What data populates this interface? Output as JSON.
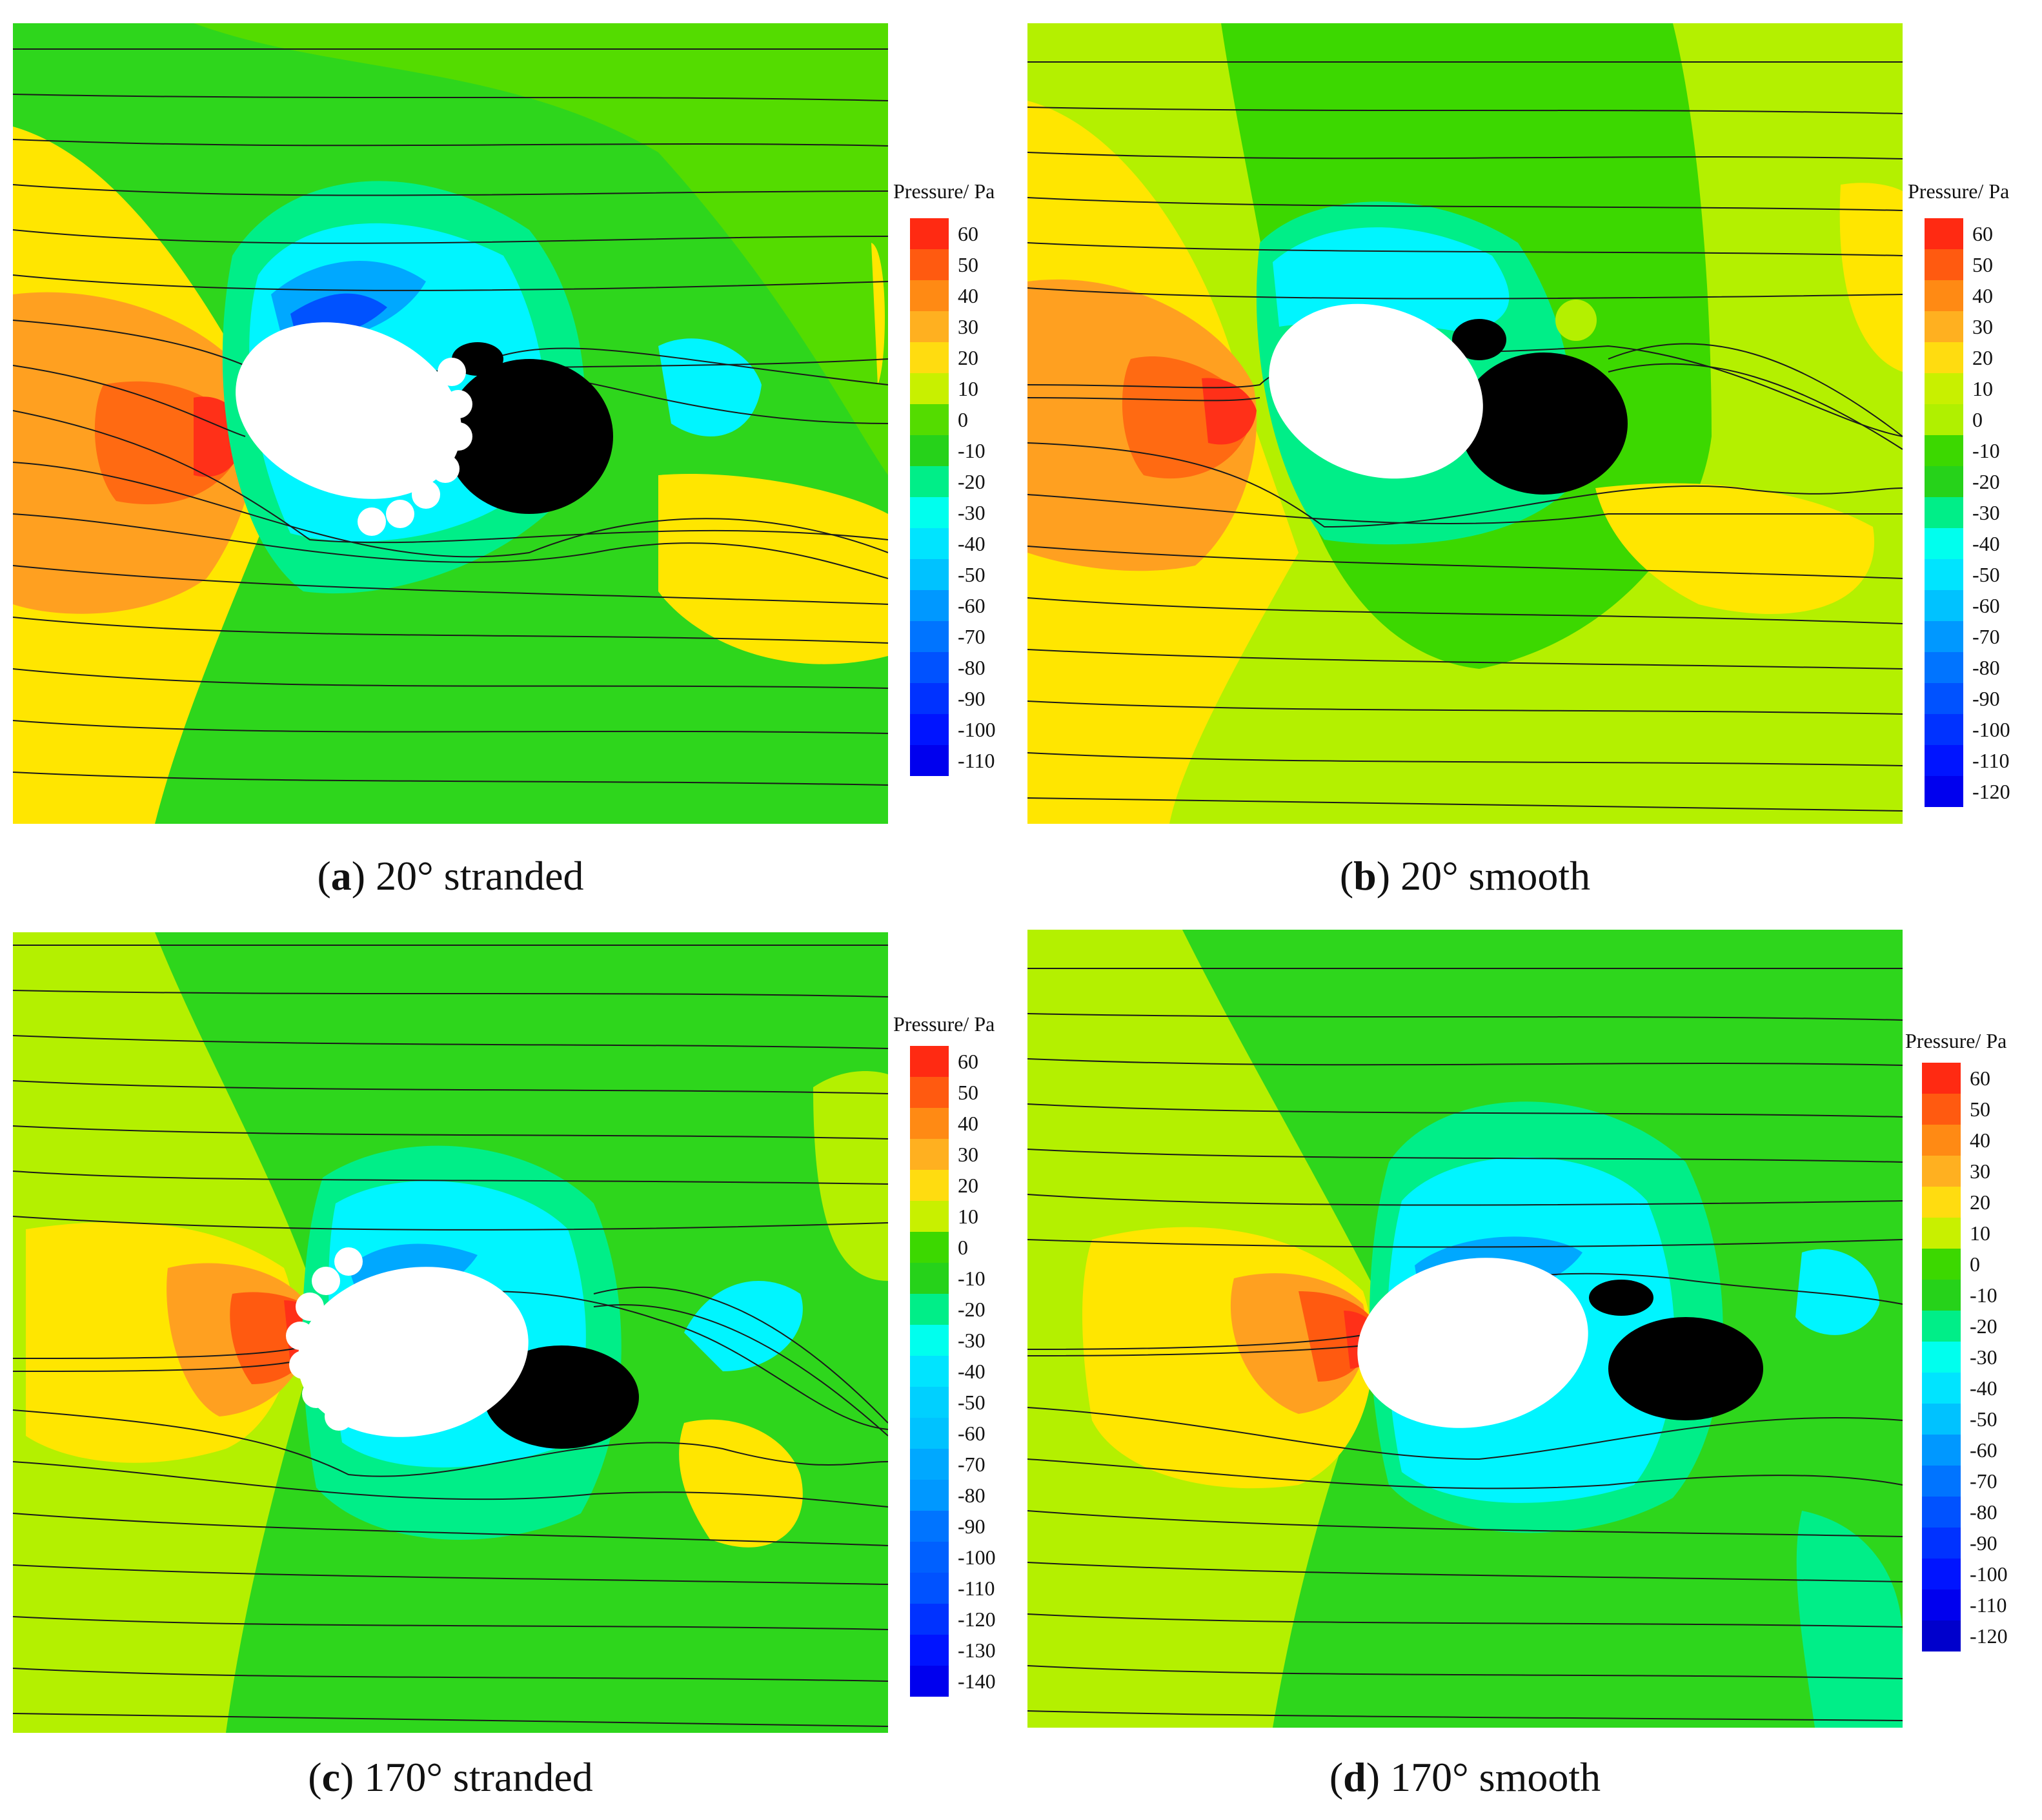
{
  "figure": {
    "panels": [
      {
        "id": "a",
        "letter": "a",
        "caption": "20° stranded",
        "legend_title": "Pressure/ Pa",
        "legend_levels": [
          "60",
          "50",
          "40",
          "30",
          "20",
          "10",
          "0",
          "-10",
          "-20",
          "-30",
          "-40",
          "-50",
          "-60",
          "-70",
          "-80",
          "-90",
          "-100",
          "-110"
        ],
        "legend_colors": [
          "#ff2a12",
          "#ff5a10",
          "#ff8a14",
          "#ffb020",
          "#ffdc10",
          "#c8f000",
          "#54dc00",
          "#26d21a",
          "#00ee88",
          "#00ffee",
          "#00e4ff",
          "#00c2ff",
          "#0098ff",
          "#0074ff",
          "#0052ff",
          "#0032ff",
          "#0014ff",
          "#0000ee"
        ],
        "cylinder": "stranded",
        "cylinder_tilt_deg": 20
      },
      {
        "id": "b",
        "letter": "b",
        "caption": "20° smooth",
        "legend_title": "Pressure/ Pa",
        "legend_levels": [
          "60",
          "50",
          "40",
          "30",
          "20",
          "10",
          "0",
          "-10",
          "-20",
          "-30",
          "-40",
          "-50",
          "-60",
          "-70",
          "-80",
          "-90",
          "-100",
          "-110",
          "-120"
        ],
        "legend_colors": [
          "#ff2a12",
          "#ff5a10",
          "#ff8a14",
          "#ffb020",
          "#ffdc10",
          "#c8f000",
          "#b0f000",
          "#3cd800",
          "#26d21a",
          "#00ee88",
          "#00ffee",
          "#00e4ff",
          "#00c2ff",
          "#0098ff",
          "#0074ff",
          "#0052ff",
          "#0032ff",
          "#0014ff",
          "#0000ee"
        ],
        "cylinder": "smooth",
        "cylinder_tilt_deg": 20
      },
      {
        "id": "c",
        "letter": "c",
        "caption": "170° stranded",
        "legend_title": "Pressure/ Pa",
        "legend_levels": [
          "60",
          "50",
          "40",
          "30",
          "20",
          "10",
          "0",
          "-10",
          "-20",
          "-30",
          "-40",
          "-50",
          "-60",
          "-70",
          "-80",
          "-90",
          "-100",
          "-110",
          "-120",
          "-130",
          "-140"
        ],
        "legend_colors": [
          "#ff2a12",
          "#ff5a10",
          "#ff8a14",
          "#ffb020",
          "#ffdc10",
          "#c8f000",
          "#3cd800",
          "#26d21a",
          "#00ee88",
          "#00ffee",
          "#00e4ff",
          "#00d0ff",
          "#00c2ff",
          "#00a8ff",
          "#0098ff",
          "#0074ff",
          "#0060ff",
          "#0052ff",
          "#0032ff",
          "#0014ff",
          "#0000ee"
        ],
        "cylinder": "stranded",
        "cylinder_tilt_deg": 170
      },
      {
        "id": "d",
        "letter": "d",
        "caption": "170° smooth",
        "legend_title": "Pressure/ Pa",
        "legend_levels": [
          "60",
          "50",
          "40",
          "30",
          "20",
          "10",
          "0",
          "-10",
          "-20",
          "-30",
          "-40",
          "-50",
          "-60",
          "-70",
          "-80",
          "-90",
          "-100",
          "-110",
          "-120"
        ],
        "legend_colors": [
          "#ff2a12",
          "#ff5a10",
          "#ff8a14",
          "#ffb020",
          "#ffdc10",
          "#c8f000",
          "#3cd800",
          "#26d21a",
          "#00ee88",
          "#00ffee",
          "#00e4ff",
          "#00c2ff",
          "#0098ff",
          "#0074ff",
          "#0052ff",
          "#0032ff",
          "#0014ff",
          "#0000ee",
          "#0000cc"
        ],
        "cylinder": "smooth",
        "cylinder_tilt_deg": 170
      }
    ]
  },
  "colors": {
    "background_green": "#2ed61c",
    "yellow_zone": "#ffe600",
    "lime_zone": "#b4f000",
    "orange_zone": "#ffa020",
    "red_zone": "#ff3018",
    "cyan_zone": "#00f5ff",
    "blue_zone": "#0060ff",
    "vortex": "#000000",
    "streamline": "#1a1a1a"
  }
}
